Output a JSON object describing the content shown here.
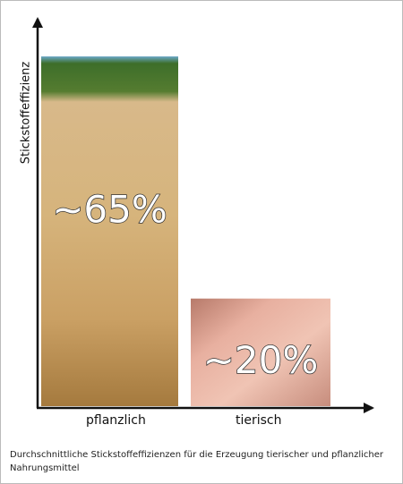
{
  "chart_data": {
    "type": "bar",
    "y_label": "Stickstoffeffizienz",
    "categories": [
      "pflanzlich",
      "tierisch"
    ],
    "values": [
      65,
      20
    ],
    "value_labels": [
      "~65%",
      "~20%"
    ],
    "ylim": [
      0,
      70
    ],
    "caption": "Durchschnittliche Stickstoffeffizienzen für die Erzeugung tierischer und pflanzlicher Nahrungsmittel"
  }
}
